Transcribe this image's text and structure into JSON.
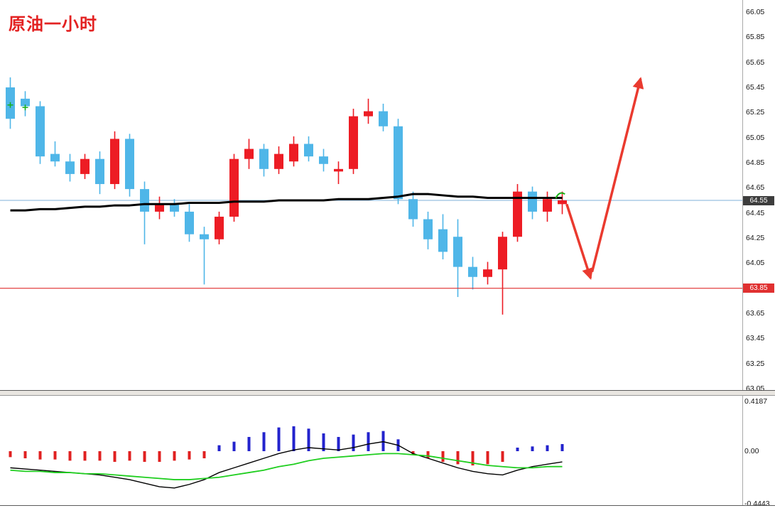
{
  "title": "原油一小时",
  "colors": {
    "bull": "#ed1c24",
    "bear": "#4fb6e8",
    "ma_line": "#000000",
    "current_price_line": "#7fb2d9",
    "support_line": "#e03030",
    "arrow": "#ea3a2f",
    "macd_pos": "#2323cd",
    "macd_neg": "#e02020",
    "macd_line": "#000000",
    "signal_line": "#1fce1f",
    "marker_green": "#18b018",
    "current_tag_bg": "#3d3d3d",
    "support_tag_bg": "#e03030"
  },
  "axis": {
    "price_ticks": [
      "66.05",
      "65.85",
      "65.65",
      "65.45",
      "65.25",
      "65.05",
      "64.85",
      "64.65",
      "64.45",
      "64.25",
      "64.05",
      "63.85",
      "63.65",
      "63.45",
      "63.25",
      "63.05"
    ],
    "indicator_ticks": [
      "0.4187",
      "0.00",
      "-0.4443"
    ],
    "current_price_tag": "64.55",
    "support_tag": "63.85"
  },
  "chart_data": [
    {
      "type": "candlestick",
      "title": "原油一小时",
      "ylabel": "price",
      "ylim": [
        63.05,
        66.05
      ],
      "grid": false,
      "up_means": "red (CN convention)",
      "candles": [
        [
          65.45,
          65.53,
          65.12,
          65.2
        ],
        [
          65.36,
          65.42,
          65.22,
          65.3
        ],
        [
          65.3,
          65.34,
          64.84,
          64.9
        ],
        [
          64.92,
          65.02,
          64.82,
          64.86
        ],
        [
          64.86,
          64.92,
          64.7,
          64.76
        ],
        [
          64.76,
          64.92,
          64.72,
          64.88
        ],
        [
          64.88,
          64.94,
          64.6,
          64.68
        ],
        [
          64.68,
          65.1,
          64.64,
          65.04
        ],
        [
          65.04,
          65.08,
          64.58,
          64.64
        ],
        [
          64.64,
          64.7,
          64.2,
          64.46
        ],
        [
          64.46,
          64.58,
          64.4,
          64.52
        ],
        [
          64.52,
          64.56,
          64.42,
          64.46
        ],
        [
          64.46,
          64.52,
          64.22,
          64.28
        ],
        [
          64.28,
          64.34,
          63.88,
          64.24
        ],
        [
          64.24,
          64.46,
          64.2,
          64.42
        ],
        [
          64.42,
          64.92,
          64.38,
          64.88
        ],
        [
          64.88,
          65.04,
          64.8,
          64.96
        ],
        [
          64.96,
          65.0,
          64.74,
          64.8
        ],
        [
          64.8,
          64.98,
          64.76,
          64.92
        ],
        [
          64.86,
          65.06,
          64.82,
          65.0
        ],
        [
          65.0,
          65.06,
          64.86,
          64.9
        ],
        [
          64.9,
          64.96,
          64.78,
          64.84
        ],
        [
          64.78,
          64.86,
          64.68,
          64.8
        ],
        [
          64.8,
          65.28,
          64.76,
          65.22
        ],
        [
          65.22,
          65.36,
          65.16,
          65.26
        ],
        [
          65.26,
          65.32,
          65.1,
          65.14
        ],
        [
          65.14,
          65.2,
          64.52,
          64.56
        ],
        [
          64.56,
          64.62,
          64.34,
          64.4
        ],
        [
          64.4,
          64.46,
          64.16,
          64.24
        ],
        [
          64.32,
          64.44,
          64.08,
          64.14
        ],
        [
          64.26,
          64.4,
          63.78,
          64.02
        ],
        [
          64.02,
          64.1,
          63.84,
          63.94
        ],
        [
          63.94,
          64.06,
          63.88,
          64.0
        ],
        [
          64.0,
          64.3,
          63.64,
          64.26
        ],
        [
          64.26,
          64.68,
          64.22,
          64.62
        ],
        [
          64.62,
          64.66,
          64.4,
          64.46
        ],
        [
          64.46,
          64.62,
          64.38,
          64.56
        ],
        [
          64.52,
          64.62,
          64.44,
          64.55
        ]
      ],
      "ma": [
        64.47,
        64.47,
        64.48,
        64.48,
        64.49,
        64.5,
        64.5,
        64.51,
        64.51,
        64.52,
        64.52,
        64.52,
        64.53,
        64.53,
        64.53,
        64.54,
        64.54,
        64.54,
        64.55,
        64.55,
        64.55,
        64.55,
        64.56,
        64.56,
        64.56,
        64.57,
        64.58,
        64.6,
        64.6,
        64.59,
        64.58,
        64.58,
        64.57,
        64.57,
        64.57,
        64.57,
        64.57,
        64.57
      ],
      "hlines": [
        {
          "name": "current-price",
          "price": 64.55
        },
        {
          "name": "support",
          "price": 63.85
        }
      ],
      "arrows": [
        {
          "name": "projection-down",
          "from_index": 37.3,
          "from_price": 64.52,
          "to_index": 38.9,
          "to_price": 63.93
        },
        {
          "name": "projection-up",
          "from_index": 39.0,
          "from_price": 63.98,
          "to_index": 42.25,
          "to_price": 65.52
        }
      ],
      "plus_markers": [
        {
          "index": 0,
          "price": 65.31
        },
        {
          "index": 1,
          "price": 65.29
        }
      ],
      "entry_marker": {
        "index": 36.8,
        "price": 64.6
      }
    },
    {
      "type": "macd",
      "ylim": [
        -0.4443,
        0.4187
      ],
      "zero_label": "0.00",
      "histogram": [
        -0.05,
        -0.06,
        -0.07,
        -0.07,
        -0.08,
        -0.08,
        -0.08,
        -0.09,
        -0.08,
        -0.09,
        -0.09,
        -0.08,
        -0.07,
        -0.06,
        0.05,
        0.08,
        0.12,
        0.16,
        0.2,
        0.21,
        0.19,
        0.15,
        0.12,
        0.14,
        0.16,
        0.17,
        0.1,
        -0.03,
        -0.06,
        -0.09,
        -0.11,
        -0.12,
        -0.11,
        -0.09,
        0.03,
        0.04,
        0.05,
        0.06
      ],
      "macd_line": [
        -0.14,
        -0.15,
        -0.16,
        -0.17,
        -0.18,
        -0.19,
        -0.2,
        -0.22,
        -0.24,
        -0.27,
        -0.3,
        -0.31,
        -0.28,
        -0.24,
        -0.18,
        -0.14,
        -0.1,
        -0.06,
        -0.02,
        0.01,
        0.03,
        0.02,
        0.01,
        0.03,
        0.06,
        0.08,
        0.05,
        -0.02,
        -0.06,
        -0.1,
        -0.14,
        -0.17,
        -0.19,
        -0.2,
        -0.16,
        -0.13,
        -0.11,
        -0.09
      ],
      "signal_line": [
        -0.16,
        -0.17,
        -0.17,
        -0.18,
        -0.18,
        -0.19,
        -0.19,
        -0.2,
        -0.21,
        -0.22,
        -0.23,
        -0.24,
        -0.24,
        -0.23,
        -0.22,
        -0.2,
        -0.18,
        -0.16,
        -0.13,
        -0.11,
        -0.08,
        -0.06,
        -0.05,
        -0.04,
        -0.03,
        -0.02,
        -0.02,
        -0.03,
        -0.04,
        -0.06,
        -0.08,
        -0.1,
        -0.12,
        -0.13,
        -0.14,
        -0.14,
        -0.13,
        -0.13
      ]
    }
  ]
}
